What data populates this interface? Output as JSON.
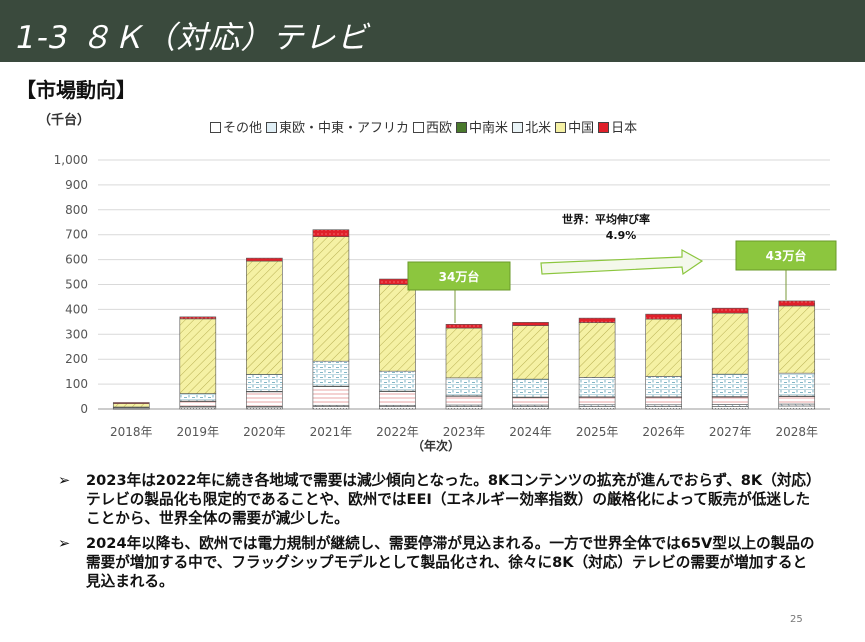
{
  "header": {
    "title": "1-3 ８Ｋ（対応）テレビ"
  },
  "section": {
    "heading": "【市場動向】"
  },
  "chart_data": {
    "type": "bar",
    "stacked": true,
    "ylabel": "（千台）",
    "xlabel": "（年次）",
    "ylim": [
      0,
      1000
    ],
    "yticks": [
      "0",
      "100",
      "200",
      "300",
      "400",
      "500",
      "600",
      "700",
      "800",
      "900",
      "1,000"
    ],
    "categories": [
      "2018年",
      "2019年",
      "2020年",
      "2021年",
      "2022年",
      "2023年",
      "2024年",
      "2025年",
      "2026年",
      "2027年",
      "2028年"
    ],
    "legend_position": "top",
    "series": [
      {
        "name": "その他",
        "color": "#ffffff",
        "values": [
          1,
          8,
          8,
          10,
          10,
          10,
          10,
          10,
          10,
          10,
          12
        ]
      },
      {
        "name": "東欧・中東・アフリカ",
        "color": "#ffffff",
        "values": [
          0,
          3,
          3,
          5,
          5,
          6,
          6,
          7,
          7,
          8,
          8
        ]
      },
      {
        "name": "西欧",
        "color": "#ffffff",
        "values": [
          4,
          20,
          58,
          75,
          55,
          35,
          30,
          30,
          30,
          30,
          30
        ]
      },
      {
        "name": "中南米",
        "color": "#4a7a2c",
        "values": [
          0,
          1,
          2,
          2,
          2,
          2,
          2,
          2,
          2,
          2,
          2
        ]
      },
      {
        "name": "北米",
        "color": "#ffffff",
        "values": [
          3,
          30,
          68,
          100,
          80,
          72,
          72,
          78,
          82,
          90,
          92
        ]
      },
      {
        "name": "中国",
        "color": "#f3ef9a",
        "values": [
          14,
          300,
          455,
          500,
          348,
          200,
          215,
          220,
          230,
          245,
          270
        ]
      },
      {
        "name": "日本",
        "color": "#e0202a",
        "values": [
          4,
          8,
          12,
          28,
          22,
          15,
          13,
          18,
          20,
          20,
          20
        ]
      }
    ],
    "annotations": [
      {
        "text": "34万台"
      },
      {
        "text": "43万台"
      },
      {
        "text_line1": "世界：平均伸び率",
        "text_line2": "4.9%"
      }
    ]
  },
  "bullets": [
    "2023年は2022年に続き各地域で需要は減少傾向となった。8Kコンテンツの拡充が進んでおらず、8K（対応）テレビの製品化も限定的であることや、欧州ではEEI（エネルギー効率指数）の厳格化によって販売が低迷したことから、世界全体の需要が減少した。",
    "2024年以降も、欧州では電力規制が継続し、需要停滞が見込まれる。一方で世界全体では65V型以上の製品の需要が増加する中で、フラッグシップモデルとして製品化され、徐々に8K（対応）テレビの需要が増加すると見込まれる。"
  ],
  "bullet_marker": "➢",
  "footer": {
    "page": "25"
  }
}
